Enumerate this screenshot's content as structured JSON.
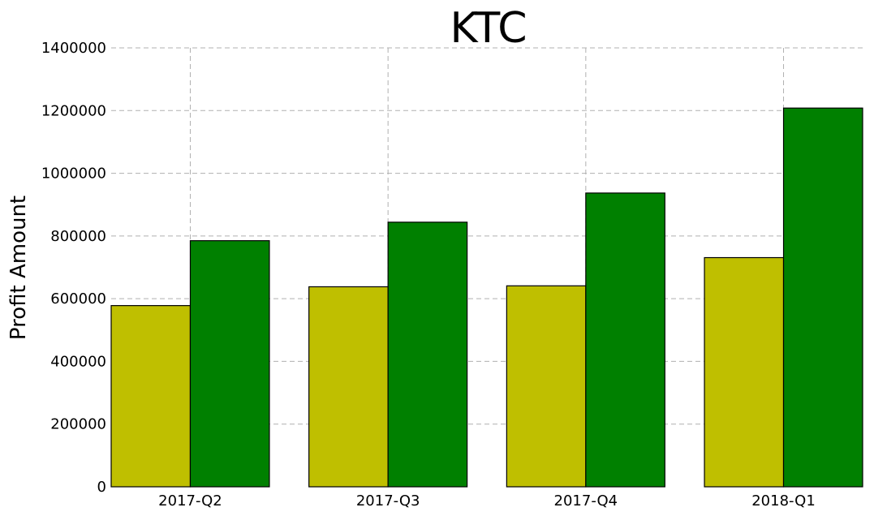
{
  "chart_data": {
    "type": "bar",
    "title": "KTC",
    "xlabel": "",
    "ylabel": "Profit Amount",
    "categories": [
      "2017-Q2",
      "2017-Q3",
      "2017-Q4",
      "2018-Q1"
    ],
    "series": [
      {
        "color": "#bfbf00",
        "values": [
          578000,
          638000,
          641000,
          731000
        ]
      },
      {
        "color": "#008000",
        "values": [
          785000,
          844000,
          937000,
          1208000
        ]
      }
    ],
    "ylim": [
      0,
      1400000
    ],
    "yticks": [
      "0",
      "200000",
      "400000",
      "600000",
      "800000",
      "1000000",
      "1200000",
      "1400000"
    ],
    "grid": true,
    "legend": "none"
  }
}
